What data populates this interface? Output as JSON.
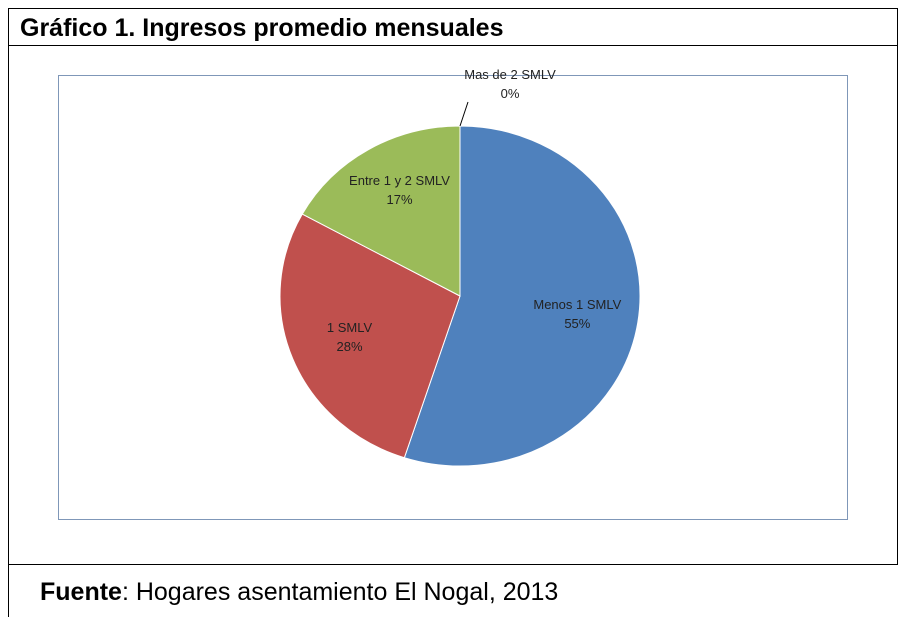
{
  "document": {
    "title": "Gráfico 1. Ingresos promedio mensuales",
    "source_label": "Fuente",
    "source_text": ": Hogares asentamiento El Nogal, 2013"
  },
  "chart_data": {
    "type": "pie",
    "categories": [
      "Menos 1 SMLV",
      "1 SMLV",
      "Entre 1 y 2 SMLV",
      "Mas de 2 SMLV"
    ],
    "values": [
      55,
      28,
      17,
      0
    ],
    "value_labels": [
      "55%",
      "28%",
      "17%",
      "0%"
    ],
    "colors": [
      "#4f81bd",
      "#c0504d",
      "#9bbb59",
      "#8064a2"
    ]
  }
}
